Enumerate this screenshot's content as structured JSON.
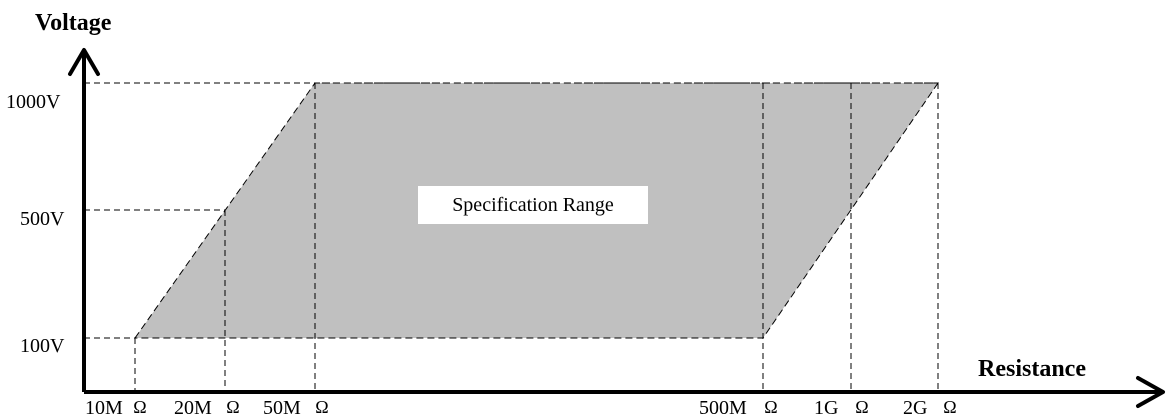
{
  "y_axis": {
    "title": "Voltage"
  },
  "x_axis": {
    "title": "Resistance"
  },
  "y_ticks": [
    "1000V",
    "500V",
    "100V"
  ],
  "x_ticks": [
    "10M",
    "20M",
    "50M",
    "500M",
    "1G",
    "2G"
  ],
  "unit_symbol": "Ω",
  "region_label": "Specification Range",
  "colors": {
    "region_fill": "#c0c0c0",
    "line": "#000000"
  }
}
